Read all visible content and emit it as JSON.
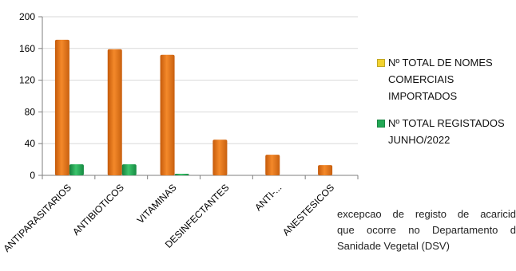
{
  "chart_data": {
    "type": "bar",
    "categories": [
      "ANTIPARASITARIOS",
      "ANTIBIOTICOS",
      "VITAMINAS",
      "DESINFECTANTES",
      "ANTI-...",
      "ANESTESICOS"
    ],
    "series": [
      {
        "name": "Nº TOTAL DE NOMES COMERCIAIS IMPORTADOS",
        "color": "#f07f16",
        "values": [
          171,
          159,
          152,
          45,
          26,
          13
        ]
      },
      {
        "name": "Nº TOTAL  REGISTADOS JUNHO/2022",
        "color": "#22a855",
        "values": [
          14,
          14,
          2,
          0,
          0,
          0
        ]
      }
    ],
    "yticks": [
      0,
      40,
      80,
      120,
      160,
      200
    ],
    "ylim": [
      0,
      200
    ],
    "grid": true,
    "legend": "right"
  },
  "legend": {
    "items": [
      {
        "line1": "Nº TOTAL DE NOMES",
        "line2": "COMERCIAIS IMPORTADOS",
        "color": "#f2d22e"
      },
      {
        "line1": "Nº TOTAL  REGISTADOS",
        "line2": "JUNHO/2022",
        "color": "#22a855"
      }
    ]
  },
  "document": {
    "line1": "excepcao de registo de acaricid",
    "line2": "que ocorre no Departamento d",
    "line3": "Sanidade Vegetal (DSV)"
  }
}
